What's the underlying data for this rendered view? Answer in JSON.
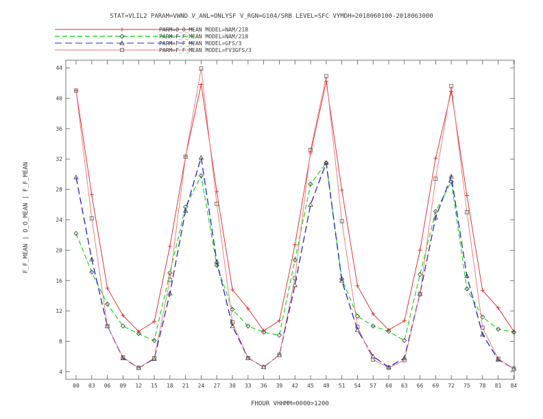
{
  "title": "STAT=VLIL2 PARAM=VWND V_ANL=ONLYSF V_RGN=G104/SRB LEVEL=SFC VYMDH=2018060100-2018063000",
  "chart_data": {
    "type": "line",
    "xlabel": "FHOUR VHHMM=0000>1200",
    "ylabel": "F_F_MEAN | O_O_MEAN | F_F_MEAN",
    "categories": [
      "00",
      "03",
      "06",
      "09",
      "12",
      "15",
      "18",
      "21",
      "24",
      "27",
      "30",
      "33",
      "36",
      "39",
      "42",
      "45",
      "48",
      "51",
      "54",
      "57",
      "60",
      "63",
      "66",
      "69",
      "72",
      "75",
      "78",
      "81",
      "84"
    ],
    "ylim": [
      3,
      45
    ],
    "yticks": [
      4,
      8,
      12,
      16,
      20,
      24,
      28,
      32,
      36,
      40,
      44
    ],
    "grid": false,
    "legend_position": "top-left",
    "series": [
      {
        "name": "PARM=O_O_MEAN MODEL=NAM/218",
        "color": "#e02020",
        "dash": "none",
        "marker": "plus",
        "values": [
          41.0,
          27.3,
          15.0,
          11.4,
          9.3,
          10.6,
          20.5,
          32.3,
          41.8,
          27.7,
          14.8,
          12.3,
          9.4,
          10.7,
          20.7,
          32.8,
          42.2,
          27.9,
          15.3,
          11.6,
          9.5,
          10.7,
          20.0,
          32.1,
          40.9,
          27.2,
          14.7,
          12.4,
          9.3
        ]
      },
      {
        "name": "PARM=F_F_MEAN MODEL=NAM/218",
        "color": "#22dd22",
        "dash": "7,4",
        "marker": "diamond",
        "values": [
          22.2,
          17.1,
          12.9,
          10.0,
          9.0,
          8.1,
          17.0,
          25.7,
          29.8,
          18.0,
          12.2,
          10.0,
          9.2,
          8.8,
          18.7,
          28.7,
          31.5,
          16.2,
          11.3,
          10.0,
          9.3,
          8.1,
          16.8,
          25.1,
          29.0,
          14.9,
          11.2,
          9.6,
          9.2
        ]
      },
      {
        "name": "PARM=F_F_MEAN MODEL=GFS/3",
        "color": "#2020c8",
        "dash": "10,5",
        "marker": "triangle",
        "values": [
          29.6,
          18.8,
          10.0,
          5.8,
          4.5,
          5.7,
          14.3,
          25.2,
          32.2,
          18.5,
          10.0,
          5.8,
          4.6,
          6.2,
          15.4,
          26.0,
          31.5,
          16.0,
          9.5,
          6.0,
          4.6,
          5.8,
          14.3,
          24.3,
          29.7,
          16.6,
          8.9,
          5.6,
          4.4
        ]
      },
      {
        "name": "PARM=F_F_MEAN MODEL=FV3GFS/3",
        "color": "#f07070",
        "dash": "none",
        "marker": "square",
        "values": [
          41.0,
          24.2,
          10.0,
          5.9,
          4.5,
          5.8,
          16.1,
          32.3,
          43.9,
          26.1,
          10.5,
          5.8,
          4.6,
          6.2,
          16.3,
          33.2,
          42.9,
          23.8,
          9.9,
          5.6,
          4.5,
          5.5,
          14.2,
          29.4,
          41.6,
          25.0,
          9.8,
          5.7,
          4.4
        ]
      }
    ]
  }
}
